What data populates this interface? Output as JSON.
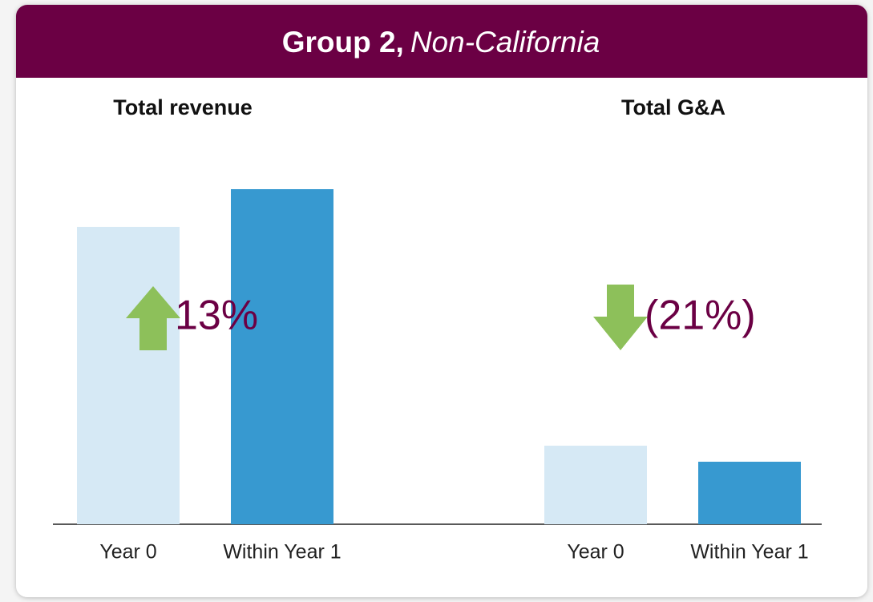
{
  "header": {
    "title": "Group 2,",
    "title_italic": "Non-California"
  },
  "chart_data": [
    {
      "type": "bar",
      "title": "Total revenue",
      "categories": [
        "Year 0",
        "Within Year 1"
      ],
      "values": [
        371,
        418
      ],
      "colors": [
        "#d6e9f5",
        "#3799d0"
      ],
      "ylim": [
        0,
        450
      ],
      "annotation": {
        "text": "13%",
        "direction": "up",
        "color": "#8dc05a"
      }
    },
    {
      "type": "bar",
      "title": "Total G&A",
      "categories": [
        "Year 0",
        "Within Year 1"
      ],
      "values": [
        98,
        78
      ],
      "colors": [
        "#d6e9f5",
        "#3799d0"
      ],
      "ylim": [
        0,
        450
      ],
      "annotation": {
        "text": "(21%)",
        "direction": "down",
        "color": "#8dc05a"
      }
    }
  ]
}
